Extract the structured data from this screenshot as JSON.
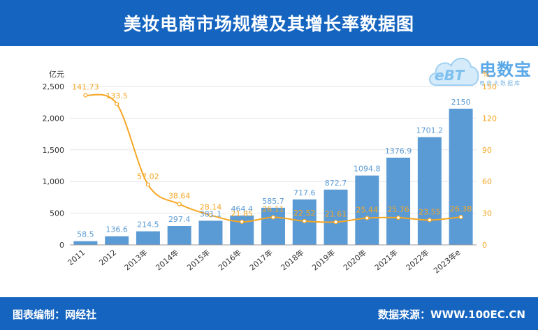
{
  "title": "美妆电商市场规模及其增长率数据图",
  "footer": {
    "left": "图表编制：网经社",
    "right": "数据来源：WWW.100EC.CN"
  },
  "logo": {
    "brand": "电数宝",
    "tagline": "电商大数据库",
    "mark": "eBT"
  },
  "colors": {
    "header": "#1565c0",
    "bar": "#5b9bd5",
    "bar_label": "#5b9bd5",
    "line": "#f5a623",
    "line_label": "#f5a623"
  },
  "chart_data": {
    "type": "bar",
    "categories": [
      "2011",
      "2012",
      "2013年",
      "2014年",
      "2015年",
      "2016年",
      "2017年",
      "2018年",
      "2019年",
      "2020年",
      "2021年",
      "2022年",
      "2023年e"
    ],
    "ylabel": "亿元",
    "ylabel_right": "%",
    "ylim": [
      0,
      2500
    ],
    "yticks": [
      "0",
      "500",
      "1,000",
      "1,500",
      "2,000",
      "2,500"
    ],
    "ylim_right": [
      0,
      150
    ],
    "yticks_right": [
      "0",
      "30",
      "60",
      "90",
      "120",
      "150"
    ],
    "grid": true,
    "series": [
      {
        "type": "bar",
        "values": [
          58.5,
          136.6,
          214.5,
          297.4,
          381.1,
          464.4,
          585.7,
          717.6,
          872.7,
          1094.8,
          1376.9,
          1701.2,
          2150
        ],
        "labels": [
          "58.5",
          "136.6",
          "214.5",
          "297.4",
          "381.1",
          "464.4",
          "585.7",
          "717.6",
          "872.7",
          "1094.8",
          "1376.9",
          "1701.2",
          "2150"
        ]
      },
      {
        "type": "line",
        "axis": "right",
        "values": [
          141.73,
          133.5,
          57.02,
          38.64,
          28.14,
          21.85,
          26.11,
          22.52,
          21.61,
          25.44,
          25.76,
          23.55,
          26.38
        ],
        "labels": [
          "141.73",
          "133.5",
          "57.02",
          "38.64",
          "28.14",
          "21.85",
          "26.11",
          "22.52",
          "21.61",
          "25.44",
          "25.76",
          "23.55",
          "26.38"
        ]
      }
    ]
  }
}
